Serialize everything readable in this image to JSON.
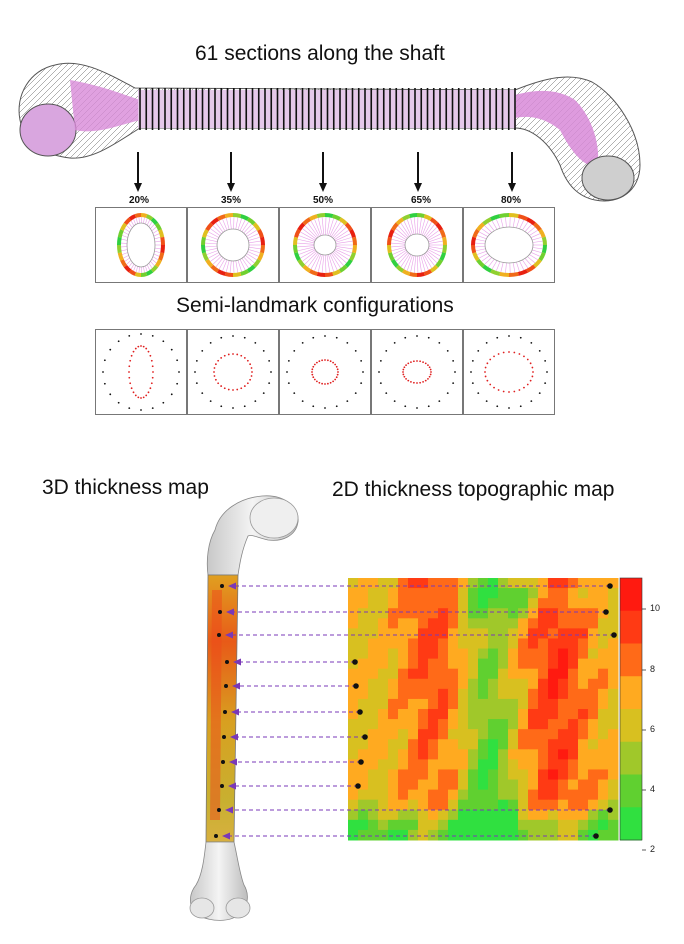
{
  "titles": {
    "sections": "61 sections along the shaft",
    "semi_landmark": "Semi-landmark configurations",
    "map3d": "3D thickness map",
    "map2d": "2D thickness topographic map"
  },
  "section_labels": [
    "20%",
    "35%",
    "50%",
    "65%",
    "80%"
  ],
  "colorbar": {
    "ticks": [
      "10",
      "8",
      "6",
      "4",
      "2"
    ],
    "colors": [
      "#ff1a10",
      "#ff3a14",
      "#ff6a18",
      "#ffaa20",
      "#d8c020",
      "#a0c82a",
      "#60d030",
      "#30e040"
    ]
  },
  "colors": {
    "arrow": "#7a38b8",
    "bone_pink": "#d88ad8",
    "bone_gray": "#9a9a9a"
  }
}
